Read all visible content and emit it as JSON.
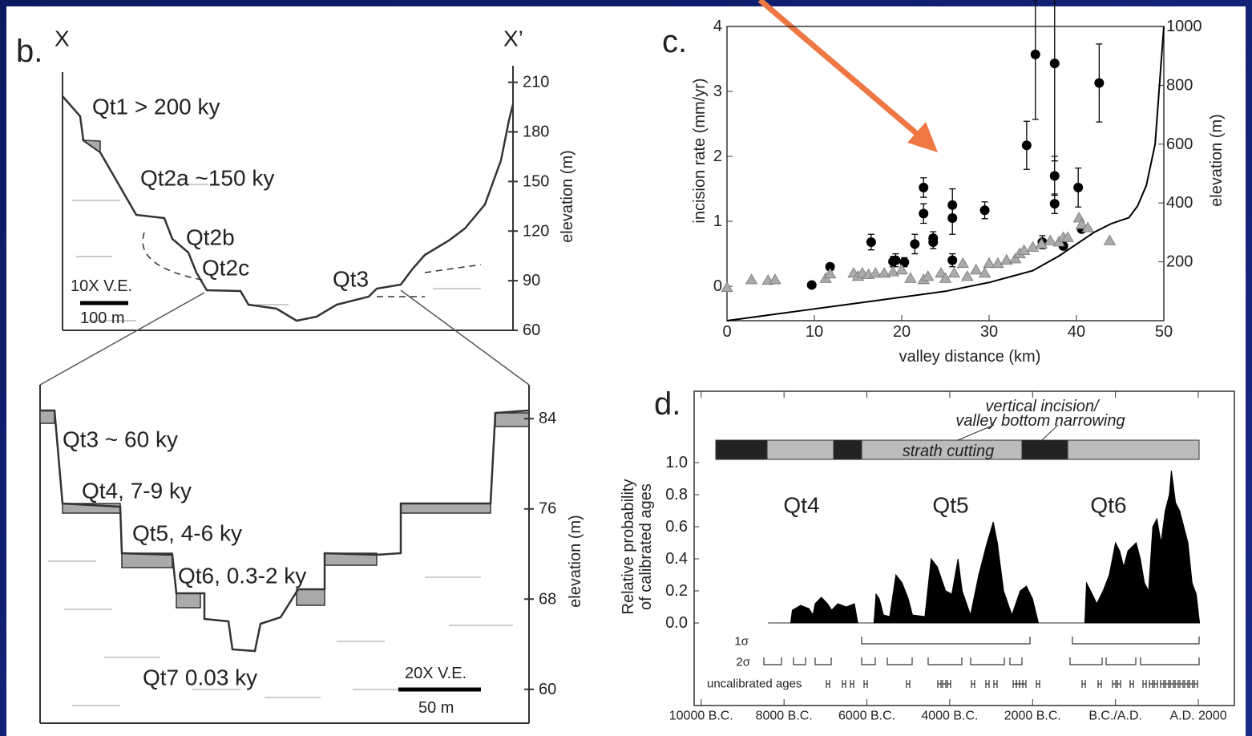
{
  "chart_data": [
    {
      "type": "profile",
      "panel_label": "b.",
      "end_labels": [
        "X",
        "X’"
      ],
      "labels": [
        "Qt1 > 200 ky",
        "Qt2a ~150 ky",
        "Qt2b",
        "Qt2c",
        "Qt3"
      ],
      "scale_labels": [
        "10X V.E.",
        "100 m"
      ],
      "ylabel": "elevation (m)",
      "ylim": [
        60,
        220
      ],
      "yticks": [
        60,
        90,
        120,
        150,
        180,
        210
      ]
    },
    {
      "type": "profile",
      "labels": [
        "Qt3 ~ 60 ky",
        "Qt4, 7-9 ky",
        "Qt5, 4-6 ky",
        "Qt6, 0.3-2 ky",
        "Qt7 0.03 ky"
      ],
      "scale_labels": [
        "20X V.E.",
        "50 m"
      ],
      "ylabel": "elevation (m)",
      "ylim": [
        57,
        87
      ],
      "yticks": [
        60,
        68,
        76,
        84
      ]
    },
    {
      "type": "scatter",
      "panel_label": "c.",
      "xlabel": "valley distance (km)",
      "ylabel": "incision rate (mm/yr)",
      "y2label": "elevation (m)",
      "xlim": [
        0,
        50
      ],
      "xticks": [
        0,
        10,
        20,
        30,
        40,
        50
      ],
      "ylim": [
        -0.53,
        4
      ],
      "yticks": [
        0,
        1,
        2,
        3,
        4
      ],
      "y2lim": [
        0,
        1000
      ],
      "y2ticks": [
        200,
        400,
        600,
        800,
        1000
      ],
      "series": [
        {
          "color": "#000000",
          "marker": "circle",
          "x": [
            9.7,
            11.8,
            16.5,
            19,
            19.3,
            20.3,
            21.5,
            22.5,
            22.5,
            23.6,
            23.6,
            25.8,
            25.8,
            25.8,
            29.5,
            34.3,
            35.3,
            36.1,
            37.5,
            37.5,
            37.5,
            38.5,
            40.2,
            40.6,
            42.6
          ],
          "values": [
            0.02,
            0.3,
            0.68,
            0.38,
            0.4,
            0.37,
            0.65,
            1.12,
            1.52,
            0.68,
            0.74,
            1.05,
            1.25,
            0.4,
            1.17,
            2.17,
            3.57,
            0.68,
            3.43,
            1.7,
            1.27,
            0.62,
            1.52,
            0.88,
            3.13
          ],
          "errors": [
            0.03,
            0.05,
            0.12,
            0.08,
            0.1,
            0.07,
            0.15,
            0.15,
            0.15,
            0.1,
            0.1,
            0.25,
            0.25,
            0.1,
            0.13,
            0.37,
            1.0,
            0.1,
            1.5,
            0.3,
            0.15,
            0.05,
            0.3,
            0.05,
            0.6
          ]
        },
        {
          "color": "#aaaaaa",
          "marker": "triangle",
          "x": [
            0,
            2.8,
            4.7,
            5.5,
            11.3,
            11.8,
            14.5,
            15,
            15.5,
            16.2,
            17,
            18,
            19,
            20,
            21,
            22.5,
            23,
            24.5,
            25,
            26,
            27,
            27.5,
            28.5,
            29.5,
            30,
            31,
            32,
            33,
            33.5,
            34,
            35,
            36,
            37,
            38,
            38.5,
            39,
            40.3,
            40.6,
            41.3,
            43.8
          ],
          "values": [
            -0.02,
            0.1,
            0.09,
            0.1,
            0.12,
            0.19,
            0.2,
            0.15,
            0.2,
            0.18,
            0.2,
            0.2,
            0.22,
            0.25,
            0.12,
            0.1,
            0.15,
            0.2,
            0.12,
            0.2,
            0.35,
            0.15,
            0.25,
            0.2,
            0.35,
            0.35,
            0.4,
            0.42,
            0.5,
            0.55,
            0.6,
            0.65,
            0.7,
            0.68,
            0.75,
            0.75,
            1.05,
            0.95,
            0.9,
            0.7
          ]
        },
        {
          "color": "#000000",
          "marker": "line",
          "axis": "y2",
          "x": [
            0,
            5,
            10,
            15,
            20,
            25,
            30,
            35,
            38,
            40,
            42,
            44,
            45,
            46,
            47,
            48,
            49,
            49.5,
            50
          ],
          "values": [
            0,
            20,
            40,
            60,
            80,
            100,
            130,
            170,
            220,
            260,
            300,
            330,
            340,
            350,
            390,
            460,
            600,
            800,
            1000
          ]
        }
      ]
    },
    {
      "type": "area",
      "panel_label": "d.",
      "annotations": [
        "vertical incision/",
        "valley bottom narrowing",
        "strath cutting"
      ],
      "groups": [
        "Qt4",
        "Qt5",
        "Qt6"
      ],
      "row_labels": [
        "1σ",
        "2σ",
        "uncalibrated ages"
      ],
      "ylabel": [
        "Relative probability",
        "of calibrated ages"
      ],
      "xlim": [
        -10170,
        2870
      ],
      "xticks": [
        {
          "value": -10000,
          "label": "10000 B.C."
        },
        {
          "value": -8000,
          "label": "8000 B.C."
        },
        {
          "value": -6000,
          "label": "6000 B.C."
        },
        {
          "value": -4000,
          "label": "4000 B.C."
        },
        {
          "value": -2000,
          "label": "2000 B.C."
        },
        {
          "value": 0,
          "label": "B.C./A.D."
        },
        {
          "value": 2000,
          "label": "A.D. 2000"
        }
      ],
      "ylim": [
        -0.515,
        1.445
      ],
      "yticks": [
        {
          "value": 0,
          "label": "0.0"
        },
        0.2,
        0.4,
        0.6,
        0.8,
        {
          "value": 1,
          "label": "1.0"
        }
      ],
      "series": [
        {
          "color": "#000000",
          "x": [
            -7840,
            -7800,
            -7600,
            -7400,
            -7300,
            -7250,
            -7100,
            -6950,
            -6850,
            -6700,
            -6500,
            -6300,
            -6220,
            -6000,
            -5830,
            -5780,
            -5700,
            -5600,
            -5450,
            -5300,
            -5150,
            -5000,
            -4900,
            -4600,
            -4450,
            -4300,
            -4100,
            -3950,
            -3800,
            -3700,
            -3500,
            -3300,
            -3100,
            -2950,
            -2850,
            -2700,
            -2500,
            -2300,
            -2150,
            -2000,
            -1860,
            -1300,
            -740,
            -700,
            -600,
            -450,
            -300,
            -150,
            0,
            100,
            200,
            300,
            500,
            600,
            700,
            800,
            900,
            1000,
            1100,
            1200,
            1300,
            1350,
            1450,
            1550,
            1650,
            1750,
            1850,
            1950,
            2030
          ],
          "values": [
            0,
            0.08,
            0.11,
            0.09,
            0.05,
            0.12,
            0.16,
            0.12,
            0.08,
            0.12,
            0.1,
            0.12,
            0,
            null,
            0,
            0.18,
            0.15,
            0.05,
            0.04,
            0.3,
            0.25,
            0.15,
            0.05,
            0.04,
            0.4,
            0.35,
            0.2,
            0.18,
            0.4,
            0.2,
            0.05,
            0.3,
            0.5,
            0.63,
            0.5,
            0.2,
            0.05,
            0.2,
            0.23,
            0.15,
            0,
            null,
            0,
            0.25,
            0.2,
            0.12,
            0.2,
            0.3,
            0.5,
            0.45,
            0.35,
            0.45,
            0.5,
            0.4,
            0.25,
            0.2,
            0.6,
            0.65,
            0.5,
            0.7,
            0.8,
            0.95,
            0.75,
            0.7,
            0.6,
            0.5,
            0.25,
            0.18,
            0
          ]
        }
      ]
    }
  ]
}
